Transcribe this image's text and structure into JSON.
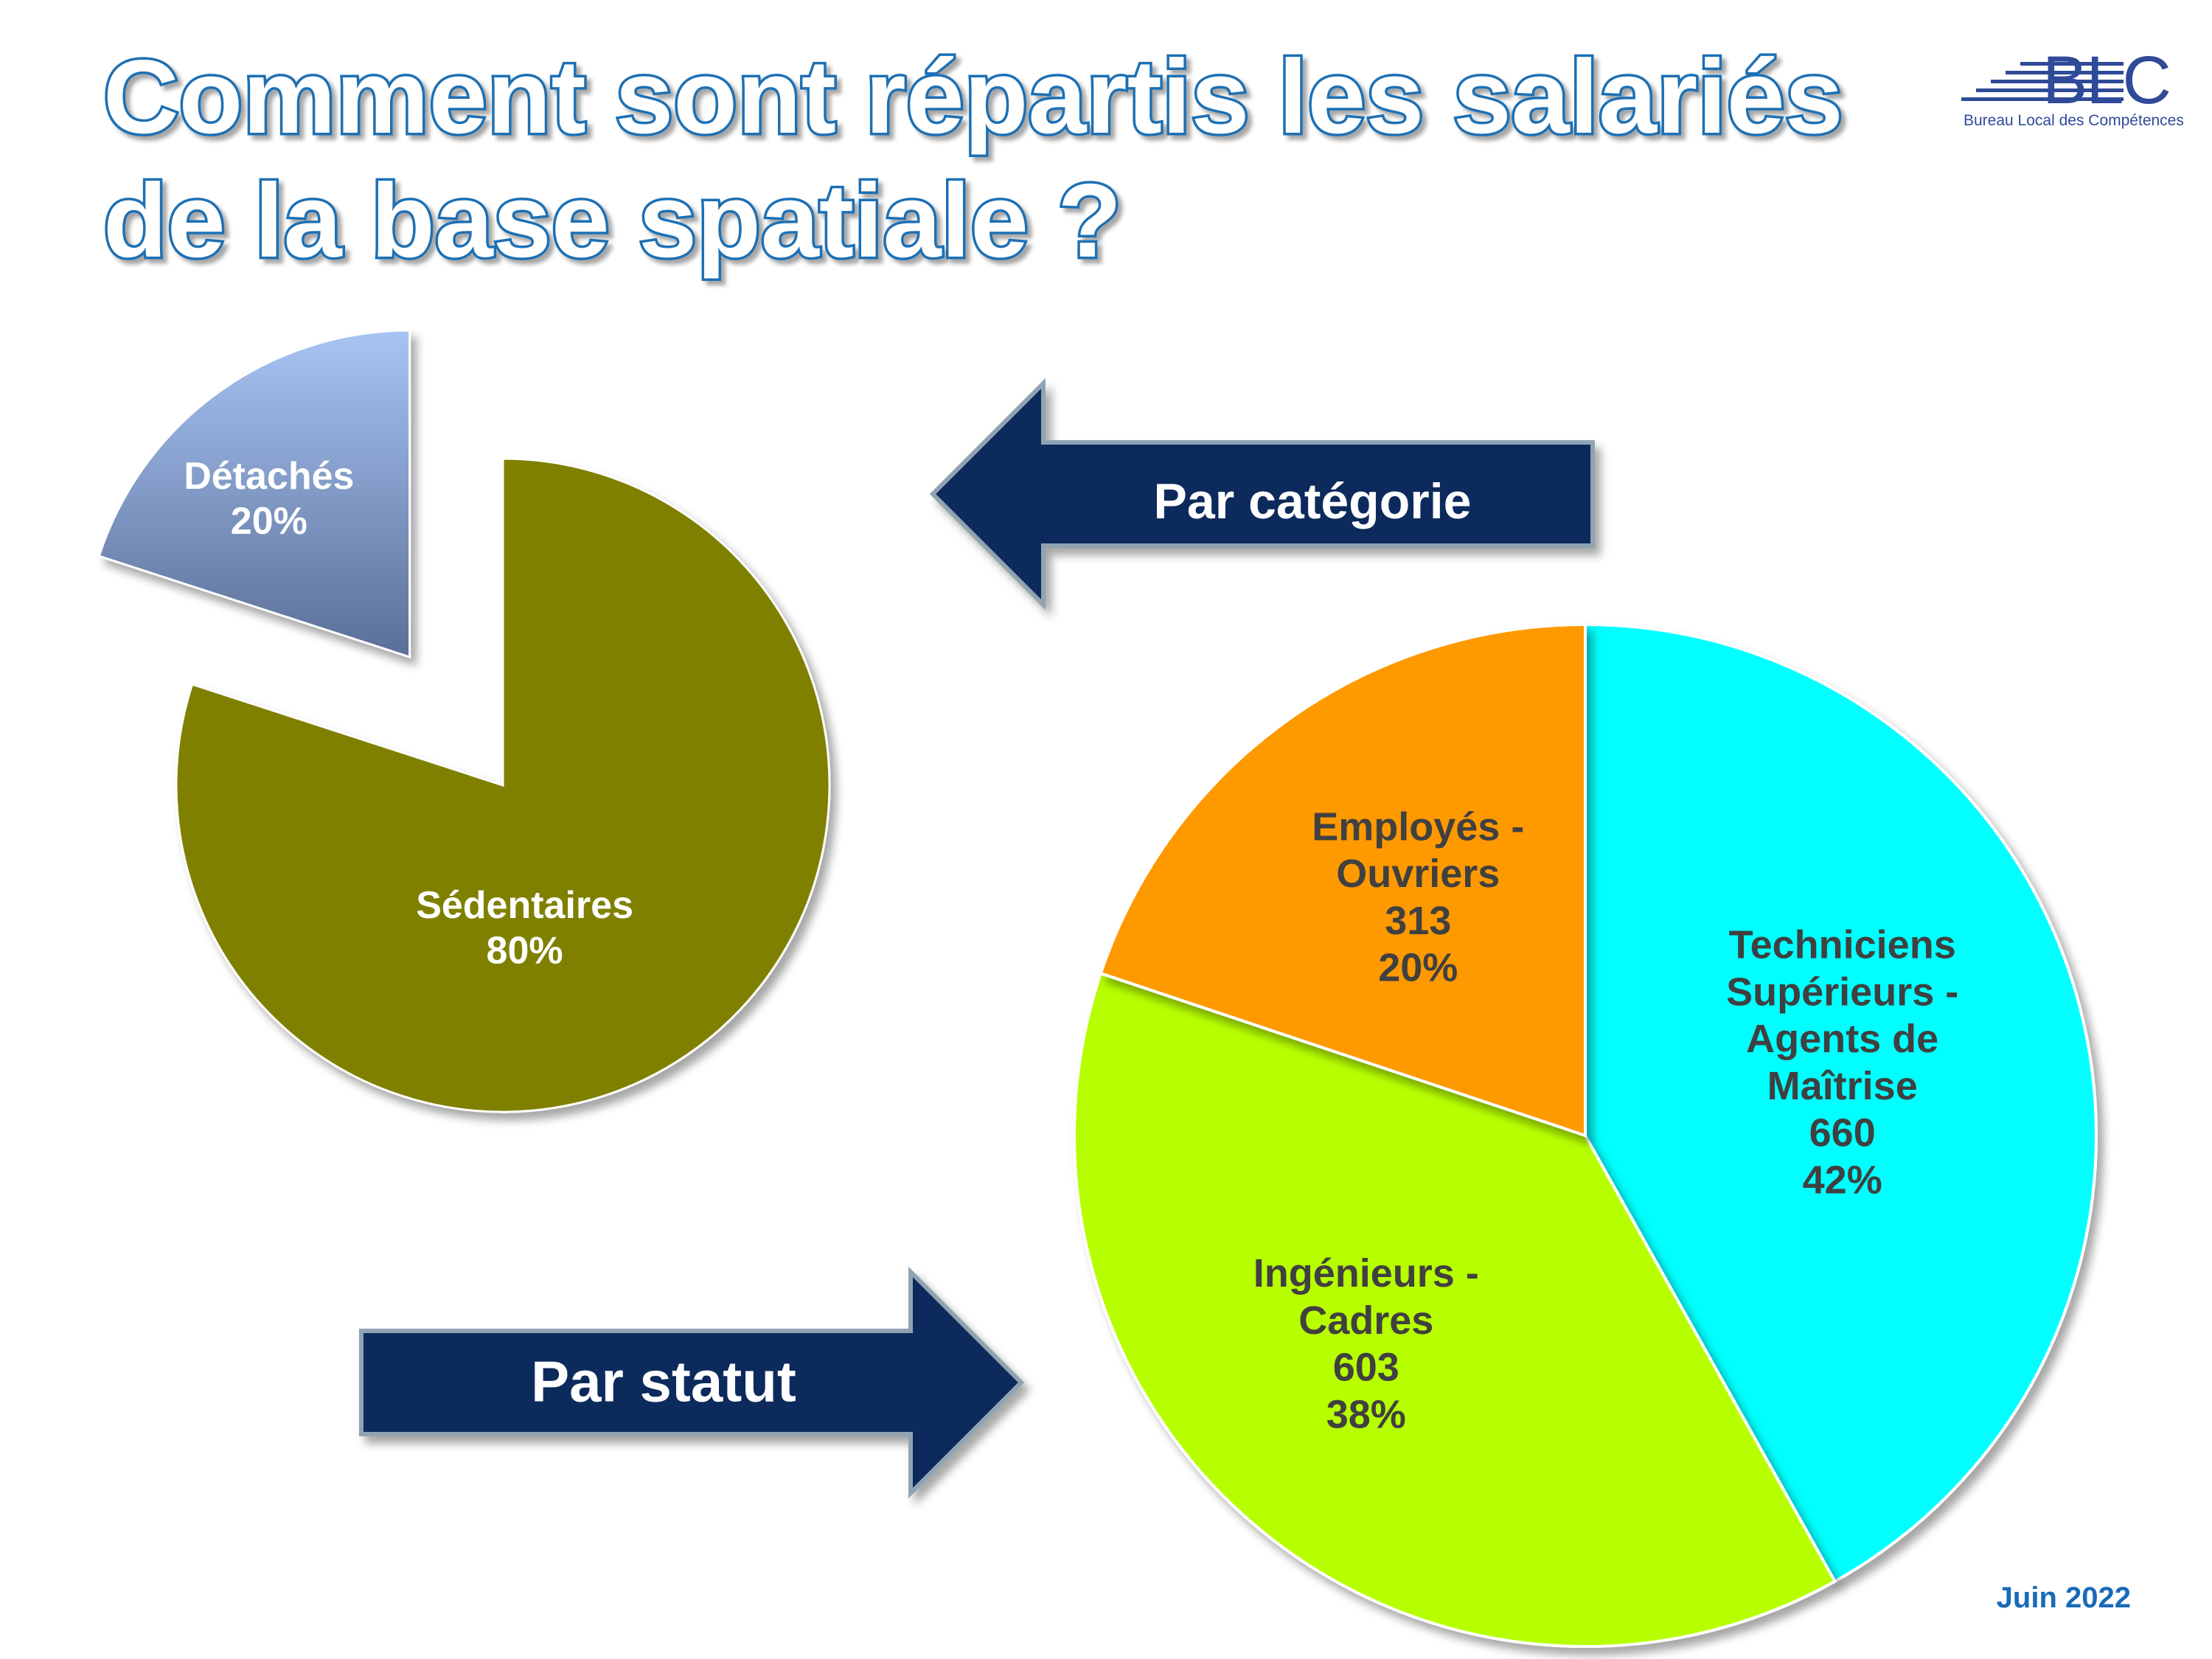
{
  "title": {
    "line1": "Comment sont répartis les salariés",
    "line2": "de la base spatiale ?"
  },
  "logo": {
    "text": "BLC",
    "subtitle": "Bureau Local des Compétences"
  },
  "date": "Juin 2022",
  "arrows": {
    "categorie": "Par catégorie",
    "statut": "Par statut"
  },
  "colors": {
    "title_fill": "#ffffff",
    "title_stroke": "#1f6fb4",
    "arrow_fill": "#0e2a5c",
    "arrow_stroke": "#8fa3b3",
    "date": "#1a6ab8",
    "logo": "#2f4a99"
  },
  "chart_data": [
    {
      "type": "pie",
      "exploded": true,
      "slices": [
        {
          "label": "Détachés",
          "value": 20,
          "percent_label": "20%",
          "color": "#9db4e6"
        },
        {
          "label": "Sédentaires",
          "value": 80,
          "percent_label": "80%",
          "color": "#808000"
        }
      ]
    },
    {
      "type": "pie",
      "slices": [
        {
          "label_lines": [
            "Techniciens",
            "Supérieurs -",
            "Agents de",
            "Maîtrise"
          ],
          "value": 660,
          "percent_label": "42%",
          "color": "#00ffff"
        },
        {
          "label_lines": [
            "Ingénieurs -",
            "Cadres"
          ],
          "value": 603,
          "percent_label": "38%",
          "color": "#b7ff00"
        },
        {
          "label_lines": [
            "Employés -",
            "Ouvriers"
          ],
          "value": 313,
          "percent_label": "20%",
          "color": "#ff9900"
        }
      ]
    }
  ]
}
